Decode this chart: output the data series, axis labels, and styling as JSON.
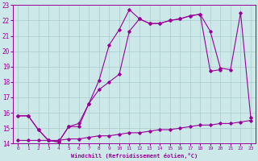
{
  "xlabel": "Windchill (Refroidissement éolien,°C)",
  "bg_color": "#cce8e8",
  "line_color": "#990099",
  "grid_color": "#aacccc",
  "xlim": [
    -0.5,
    23.5
  ],
  "ylim": [
    14,
    23
  ],
  "xticks": [
    0,
    1,
    2,
    3,
    4,
    5,
    6,
    7,
    8,
    9,
    10,
    11,
    12,
    13,
    14,
    15,
    16,
    17,
    18,
    19,
    20,
    21,
    22,
    23
  ],
  "yticks": [
    14,
    15,
    16,
    17,
    18,
    19,
    20,
    21,
    22,
    23
  ],
  "line1_x": [
    0,
    1,
    2,
    3,
    4,
    5,
    6,
    7,
    8,
    9,
    10,
    11,
    12,
    13,
    14,
    15,
    16,
    17,
    18,
    19,
    20,
    21,
    22,
    23
  ],
  "line1_y": [
    14.2,
    14.2,
    14.2,
    14.2,
    14.2,
    14.3,
    14.3,
    14.4,
    14.5,
    14.5,
    14.6,
    14.7,
    14.7,
    14.8,
    14.9,
    14.9,
    15.0,
    15.1,
    15.2,
    15.2,
    15.3,
    15.3,
    15.4,
    15.5
  ],
  "line2_x": [
    0,
    1,
    2,
    3,
    4,
    5,
    6,
    7,
    8,
    9,
    10,
    11,
    12,
    13,
    14,
    15,
    16,
    17,
    18,
    19,
    20,
    21,
    22,
    23
  ],
  "line2_y": [
    15.8,
    15.8,
    14.9,
    14.2,
    14.1,
    15.1,
    15.1,
    16.6,
    17.5,
    18.0,
    18.5,
    21.3,
    22.1,
    21.8,
    21.8,
    22.0,
    22.1,
    22.3,
    22.4,
    18.7,
    18.8,
    null,
    null,
    null
  ],
  "line3_x": [
    0,
    1,
    2,
    3,
    4,
    5,
    6,
    7,
    8,
    9,
    10,
    11,
    12,
    13,
    14,
    15,
    16,
    17,
    18,
    19,
    20,
    21,
    22,
    23
  ],
  "line3_y": [
    15.8,
    15.8,
    14.9,
    14.2,
    14.1,
    15.1,
    15.3,
    16.6,
    18.1,
    20.4,
    21.4,
    22.7,
    22.1,
    21.8,
    21.8,
    22.0,
    22.1,
    22.3,
    22.4,
    21.3,
    18.9,
    18.8,
    22.5,
    15.7
  ]
}
